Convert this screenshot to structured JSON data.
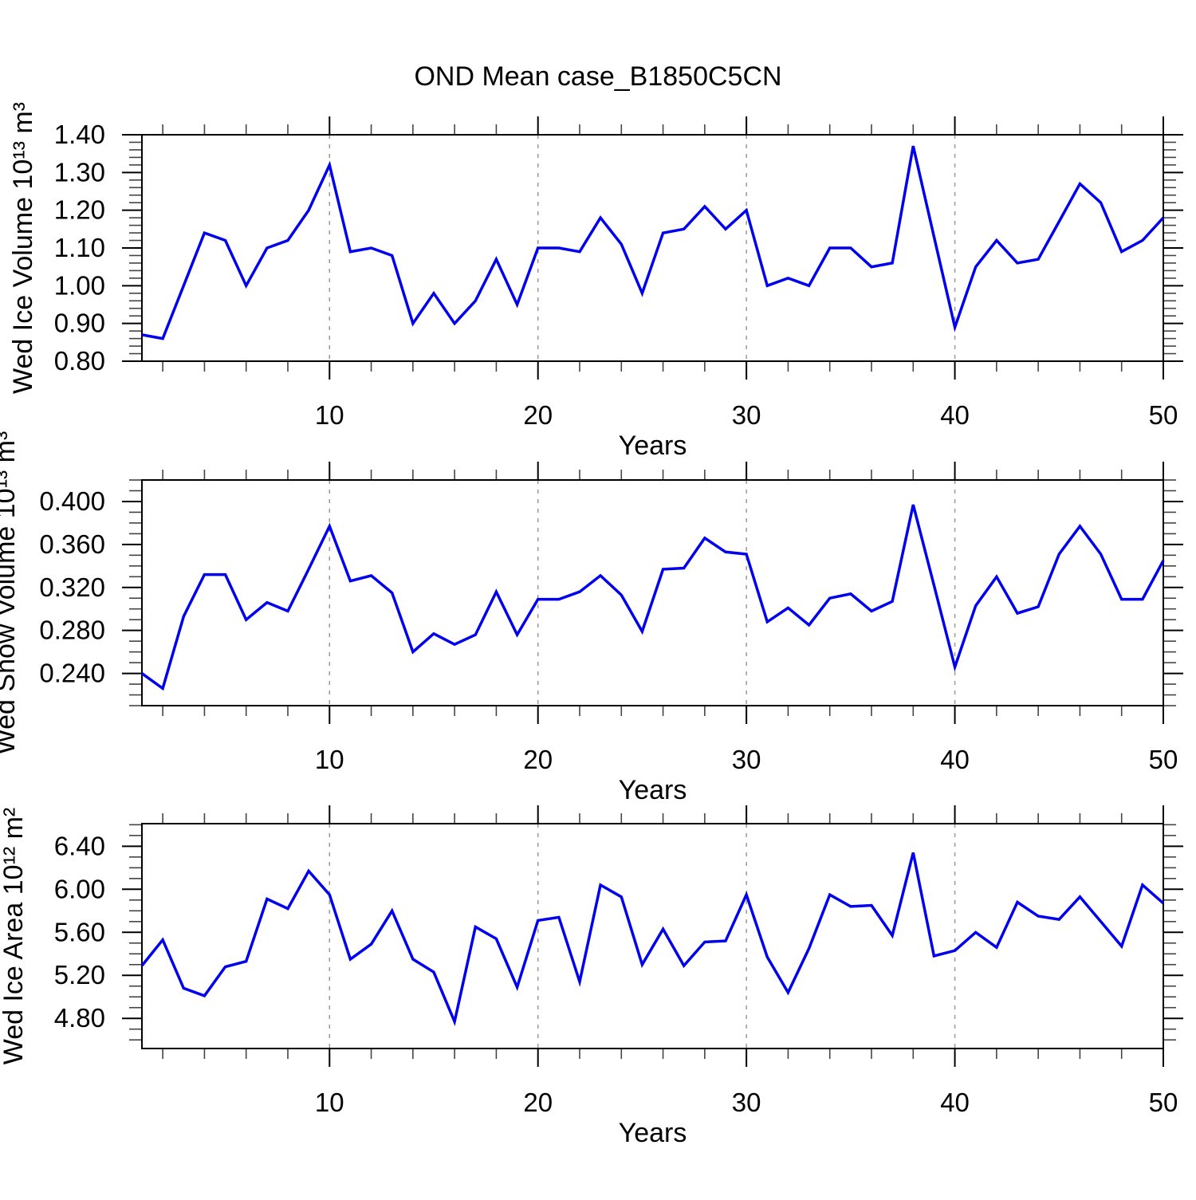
{
  "page": {
    "title": "OND Mean case_B1850C5CN"
  },
  "chart_data": [
    {
      "type": "line",
      "title": "OND Mean case_B1850C5CN",
      "ylabel": "Wed Ice Volume 10¹³ m³",
      "xlabel": "Years",
      "x_start": 1,
      "x_end": 50,
      "values": [
        0.87,
        0.86,
        1.0,
        1.14,
        1.12,
        1.0,
        1.1,
        1.12,
        1.2,
        1.32,
        1.09,
        1.1,
        1.08,
        0.9,
        0.98,
        0.9,
        0.96,
        1.07,
        0.95,
        1.1,
        1.1,
        1.09,
        1.18,
        1.11,
        0.98,
        1.14,
        1.15,
        1.21,
        1.15,
        1.2,
        1.0,
        1.02,
        1.0,
        1.1,
        1.1,
        1.05,
        1.06,
        1.37,
        1.13,
        0.89,
        1.05,
        1.12,
        1.06,
        1.07,
        1.17,
        1.27,
        1.22,
        1.09,
        1.12,
        1.18
      ],
      "ylim": [
        0.8,
        1.4
      ],
      "yticks": [
        0.8,
        0.9,
        1.0,
        1.1,
        1.2,
        1.3,
        1.4
      ],
      "ytick_labels": [
        "0.80",
        "0.90",
        "1.00",
        "1.10",
        "1.20",
        "1.30",
        "1.40"
      ],
      "y_minor_step": 0.02,
      "xticks": [
        10,
        20,
        30,
        40,
        50
      ],
      "xtick_labels": [
        "10",
        "20",
        "30",
        "40",
        "50"
      ],
      "x_minor_step": 2,
      "gridlines_x": [
        10,
        20,
        30,
        40
      ],
      "grid": true,
      "legend": "none",
      "line_color": "#0000ee"
    },
    {
      "type": "line",
      "ylabel": "Wed Snow Volume 10¹³ m³",
      "xlabel": "Years",
      "x_start": 1,
      "x_end": 50,
      "values": [
        0.24,
        0.226,
        0.293,
        0.332,
        0.332,
        0.29,
        0.306,
        0.298,
        0.337,
        0.377,
        0.326,
        0.331,
        0.315,
        0.26,
        0.277,
        0.267,
        0.276,
        0.316,
        0.276,
        0.309,
        0.309,
        0.316,
        0.331,
        0.313,
        0.279,
        0.337,
        0.338,
        0.366,
        0.353,
        0.351,
        0.288,
        0.301,
        0.285,
        0.31,
        0.314,
        0.298,
        0.307,
        0.397,
        0.322,
        0.246,
        0.303,
        0.33,
        0.296,
        0.302,
        0.351,
        0.377,
        0.351,
        0.309,
        0.309,
        0.345
      ],
      "ylim": [
        0.21,
        0.42
      ],
      "yticks": [
        0.24,
        0.28,
        0.32,
        0.36,
        0.4
      ],
      "ytick_labels": [
        "0.240",
        "0.280",
        "0.320",
        "0.360",
        "0.400"
      ],
      "y_minor_step": 0.01,
      "xticks": [
        10,
        20,
        30,
        40,
        50
      ],
      "xtick_labels": [
        "10",
        "20",
        "30",
        "40",
        "50"
      ],
      "x_minor_step": 2,
      "gridlines_x": [
        10,
        20,
        30,
        40
      ],
      "grid": true,
      "legend": "none",
      "line_color": "#0000ee"
    },
    {
      "type": "line",
      "ylabel": "Wed Ice Area 10¹² m²",
      "xlabel": "Years",
      "x_start": 1,
      "x_end": 50,
      "values": [
        5.29,
        5.53,
        5.08,
        5.01,
        5.28,
        5.33,
        5.91,
        5.82,
        6.17,
        5.95,
        5.35,
        5.49,
        5.8,
        5.35,
        5.23,
        4.77,
        5.65,
        5.54,
        5.09,
        5.71,
        5.74,
        5.14,
        6.04,
        5.93,
        5.3,
        5.63,
        5.29,
        5.51,
        5.52,
        5.95,
        5.37,
        5.04,
        5.45,
        5.95,
        5.84,
        5.85,
        5.57,
        6.34,
        5.38,
        5.43,
        5.6,
        5.46,
        5.88,
        5.75,
        5.72,
        5.93,
        5.7,
        5.47,
        6.04,
        5.87
      ],
      "ylim": [
        4.52,
        6.61
      ],
      "yticks": [
        4.8,
        5.2,
        5.6,
        6.0,
        6.4
      ],
      "ytick_labels": [
        "4.80",
        "5.20",
        "5.60",
        "6.00",
        "6.40"
      ],
      "y_minor_step": 0.1,
      "xticks": [
        10,
        20,
        30,
        40,
        50
      ],
      "xtick_labels": [
        "10",
        "20",
        "30",
        "40",
        "50"
      ],
      "x_minor_step": 2,
      "gridlines_x": [
        10,
        20,
        30,
        40
      ],
      "grid": true,
      "legend": "none",
      "line_color": "#0000ee"
    }
  ],
  "colors": {
    "line": "#0000ee",
    "axis": "#000000",
    "gridline": "#9a9a9a"
  }
}
